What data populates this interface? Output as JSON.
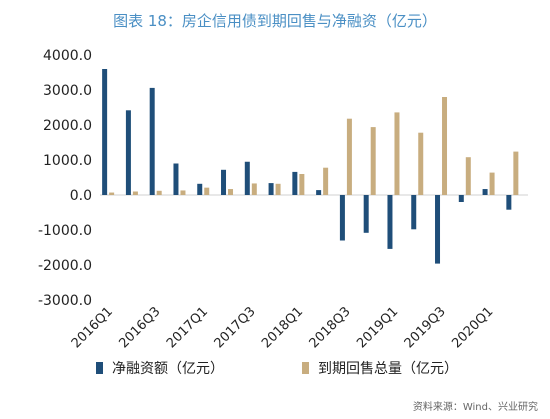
{
  "title": "图表 18：房企信用债到期回售与净融资（亿元）",
  "source": "资料来源：Wind、兴业研究",
  "chart_data": {
    "type": "bar",
    "categories": [
      "2016Q1",
      "2016Q2",
      "2016Q3",
      "2016Q4",
      "2017Q1",
      "2017Q2",
      "2017Q3",
      "2017Q4",
      "2018Q1",
      "2018Q2",
      "2018Q3",
      "2018Q4",
      "2019Q1",
      "2019Q2",
      "2019Q3",
      "2019Q4",
      "2020Q1",
      "2020Q2"
    ],
    "tick_labels": [
      "2016Q1",
      "2016Q3",
      "2017Q1",
      "2017Q3",
      "2018Q1",
      "2018Q3",
      "2019Q1",
      "2019Q3",
      "2020Q1"
    ],
    "tick_indices": [
      0,
      2,
      4,
      6,
      8,
      10,
      12,
      14,
      16
    ],
    "y_ticks": [
      "4000.0",
      "3000.0",
      "2000.0",
      "1000.0",
      "0.0",
      "-1000.0",
      "-2000.0",
      "-3000.0"
    ],
    "y_tick_values": [
      4000,
      3000,
      2000,
      1000,
      0,
      -1000,
      -2000,
      -3000
    ],
    "ylim": [
      -3000,
      4000
    ],
    "series": [
      {
        "name": "净融资额（亿元）",
        "color": "#1f4e79",
        "values": [
          3600,
          2420,
          3060,
          900,
          320,
          720,
          950,
          340,
          660,
          140,
          -1300,
          -1080,
          -1540,
          -980,
          -1960,
          -200,
          170,
          -420
        ]
      },
      {
        "name": "到期回售总量（亿元）",
        "color": "#c8ad7f",
        "values": [
          70,
          100,
          120,
          130,
          210,
          170,
          330,
          320,
          600,
          780,
          2180,
          1940,
          2360,
          1780,
          2800,
          1080,
          640,
          1240
        ]
      }
    ],
    "grid": false,
    "legend": "bottom"
  }
}
